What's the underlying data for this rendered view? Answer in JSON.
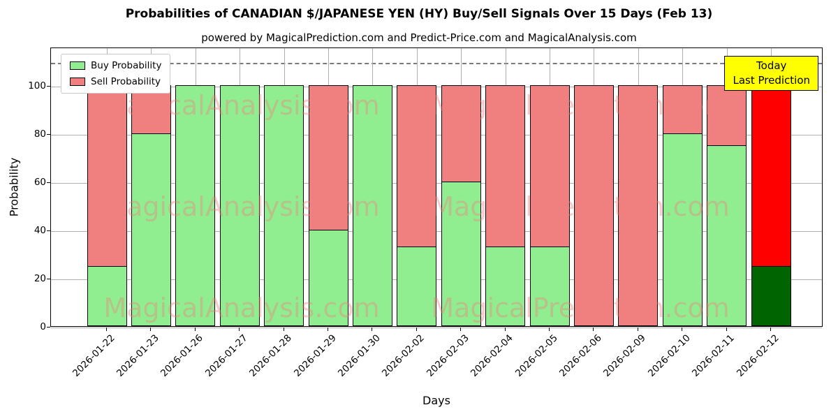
{
  "title": "Probabilities of CANADIAN $/JAPANESE YEN (HY) Buy/Sell Signals Over 15 Days (Feb 13)",
  "subtitle": "powered by MagicalPrediction.com and Predict-Price.com and MagicalAnalysis.com",
  "chart_data": {
    "type": "bar",
    "stacked": true,
    "title": "Probabilities of CANADIAN $/JAPANESE YEN (HY) Buy/Sell Signals Over 15 Days (Feb 13)",
    "xlabel": "Days",
    "ylabel": "Probability",
    "ylim": [
      0,
      116
    ],
    "yticks": [
      0,
      20,
      40,
      60,
      80,
      100
    ],
    "dashed_line_y": 110,
    "grid": true,
    "legend_position": "upper-left",
    "categories": [
      "2026-01-22",
      "2026-01-23",
      "2026-01-26",
      "2026-01-27",
      "2026-01-28",
      "2026-01-29",
      "2026-01-30",
      "2026-02-02",
      "2026-02-03",
      "2026-02-04",
      "2026-02-05",
      "2026-02-06",
      "2026-02-09",
      "2026-02-10",
      "2026-02-11",
      "2026-02-12"
    ],
    "series": [
      {
        "name": "Buy Probability",
        "color": "#90EE90",
        "values": [
          25,
          80,
          100,
          100,
          100,
          40,
          100,
          33,
          60,
          33,
          33,
          0,
          0,
          80,
          75,
          25
        ]
      },
      {
        "name": "Sell Probability",
        "color": "#F08080",
        "values": [
          75,
          20,
          0,
          0,
          0,
          60,
          0,
          67,
          40,
          67,
          67,
          100,
          100,
          20,
          25,
          75
        ]
      }
    ],
    "today_bar": {
      "index": 15,
      "buy_color": "#006400",
      "sell_color": "#FF0000"
    },
    "legend": [
      {
        "label": "Buy Probability",
        "color": "#90EE90"
      },
      {
        "label": "Sell Probability",
        "color": "#F08080"
      }
    ],
    "today_box": {
      "lines": [
        "Today",
        "Last Prediction"
      ],
      "bg": "#FFFF00"
    },
    "watermarks": [
      "MagicalAnalysis.com",
      "MagicalPrediction.com"
    ]
  }
}
